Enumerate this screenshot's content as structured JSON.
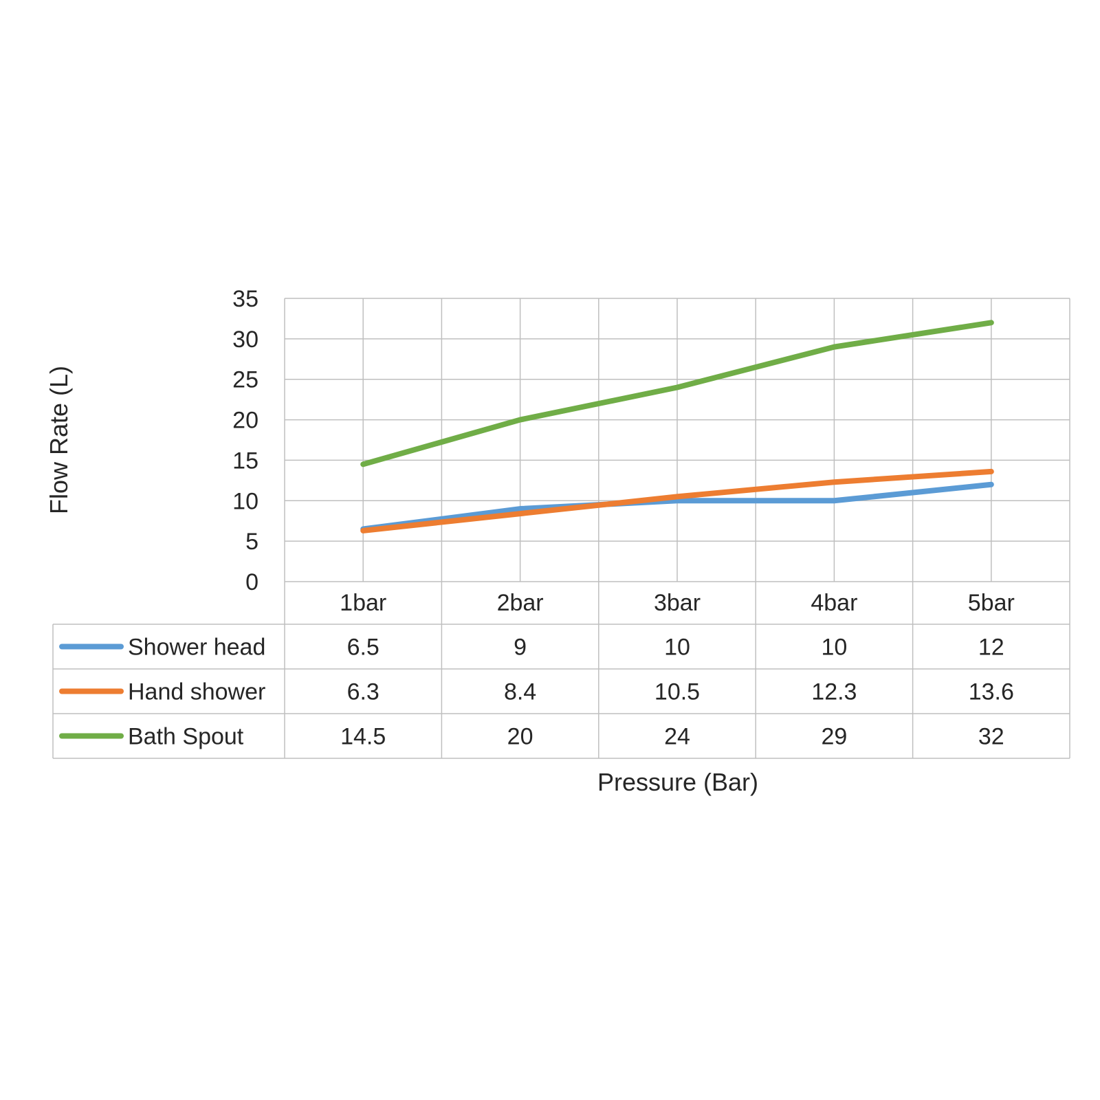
{
  "chart_data": {
    "type": "line",
    "title": "",
    "xlabel": "Pressure (Bar)",
    "ylabel": "Flow Rate (L)",
    "ylim": [
      0,
      35
    ],
    "y_ticks": [
      "0",
      "5",
      "10",
      "15",
      "20",
      "25",
      "30",
      "35"
    ],
    "grid": true,
    "legend": "data-table",
    "categories": [
      "1bar",
      "2bar",
      "3bar",
      "4bar",
      "5bar"
    ],
    "series": [
      {
        "name": "Shower head",
        "color": "#5B9BD5",
        "values": [
          6.5,
          9,
          10,
          10,
          12
        ],
        "labels": [
          "6.5",
          "9",
          "10",
          "10",
          "12"
        ]
      },
      {
        "name": "Hand shower",
        "color": "#ED7D31",
        "values": [
          6.3,
          8.4,
          10.5,
          12.3,
          13.6
        ],
        "labels": [
          "6.3",
          "8.4",
          "10.5",
          "12.3",
          "13.6"
        ]
      },
      {
        "name": "Bath Spout",
        "color": "#70AD47",
        "values": [
          14.5,
          20,
          24,
          29,
          32
        ],
        "labels": [
          "14.5",
          "20",
          "24",
          "29",
          "32"
        ]
      }
    ]
  }
}
